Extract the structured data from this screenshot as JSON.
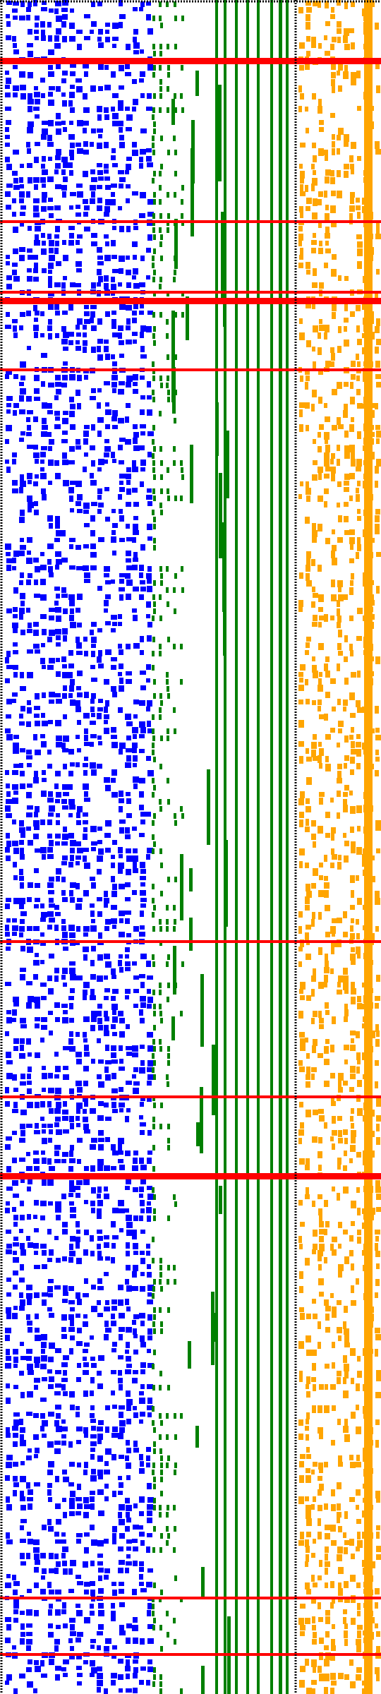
{
  "colors": {
    "background": "#ffffff",
    "left_noise": "#0000ff",
    "middle_staircase": "#008000",
    "right_noise": "#ffa500",
    "separator_lines": "#ff0000",
    "dotted_border": "#000000"
  },
  "pattern": {
    "left_density": 0.48,
    "right_density": 0.38,
    "staircase_probability": 0.55,
    "red_band_rows": [
      8,
      31,
      41,
      42,
      52,
      133,
      155,
      166,
      226,
      234
    ]
  }
}
